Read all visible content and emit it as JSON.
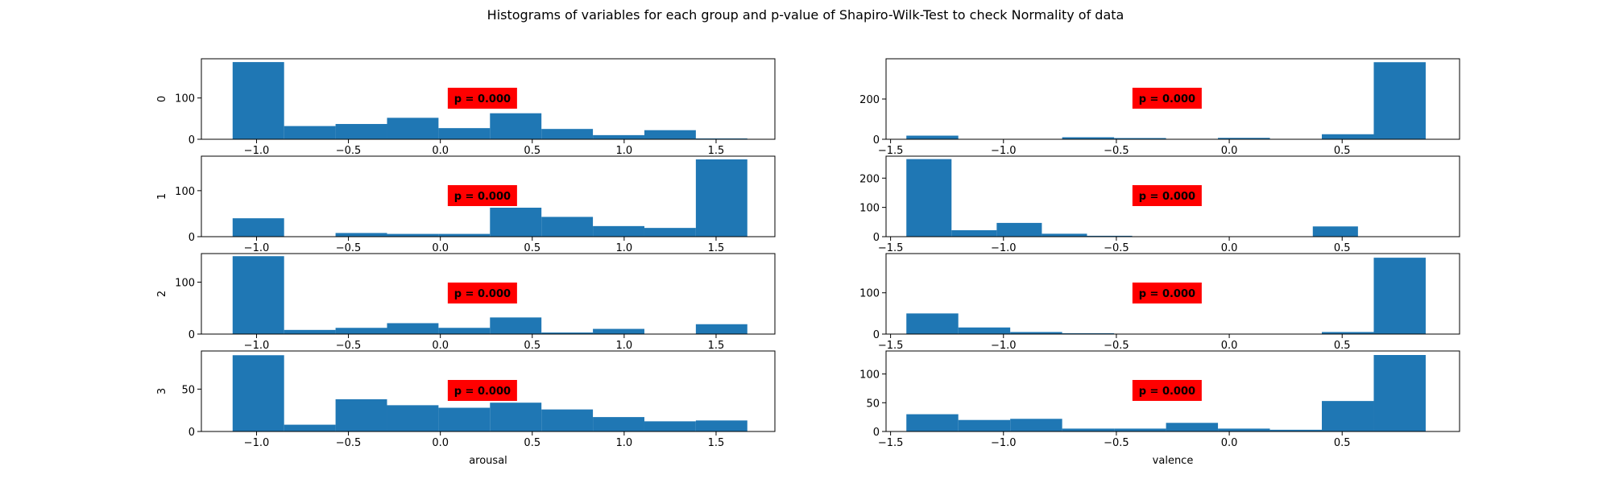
{
  "chart_data": {
    "type": "bar",
    "title": "Histograms of variables for each group and p-value of Shapiro-Wilk-Test to check Normality of data",
    "bar_color": "#1f77b4",
    "annotation_bg": "#ff0000",
    "grid": false,
    "columns": [
      {
        "variable": "arousal",
        "xlabel": "arousal",
        "xlim": [
          -1.3,
          1.82
        ],
        "xticks": [
          -1.0,
          -0.5,
          0.0,
          0.5,
          1.0,
          1.5
        ],
        "xtick_labels": [
          "−1.0",
          "−0.5",
          "0.0",
          "0.5",
          "1.0",
          "1.5"
        ],
        "panels": [
          {
            "group": "0",
            "ylim": [
              0,
              195
            ],
            "yticks": [
              0,
              100
            ],
            "bin_edges": [
              -1.13,
              -0.85,
              -0.57,
              -0.29,
              -0.01,
              0.27,
              0.55,
              0.83,
              1.11,
              1.39,
              1.67
            ],
            "counts": [
              187,
              32,
              37,
              52,
              27,
              63,
              25,
              10,
              22,
              2
            ],
            "p_text": "p = 0.000"
          },
          {
            "group": "1",
            "ylim": [
              0,
              175
            ],
            "yticks": [
              0,
              100
            ],
            "bin_edges": [
              -1.13,
              -0.85,
              -0.57,
              -0.29,
              -0.01,
              0.27,
              0.55,
              0.83,
              1.11,
              1.39,
              1.67
            ],
            "counts": [
              40,
              0,
              8,
              6,
              6,
              63,
              43,
              23,
              19,
              168
            ],
            "p_text": "p = 0.000"
          },
          {
            "group": "2",
            "ylim": [
              0,
              155
            ],
            "yticks": [
              0,
              100
            ],
            "bin_edges": [
              -1.13,
              -0.85,
              -0.57,
              -0.29,
              -0.01,
              0.27,
              0.55,
              0.83,
              1.11,
              1.39,
              1.67
            ],
            "counts": [
              150,
              8,
              12,
              21,
              12,
              32,
              3,
              10,
              0,
              19
            ],
            "p_text": "p = 0.000"
          },
          {
            "group": "3",
            "ylim": [
              0,
              95
            ],
            "yticks": [
              0,
              50
            ],
            "bin_edges": [
              -1.13,
              -0.85,
              -0.57,
              -0.29,
              -0.01,
              0.27,
              0.55,
              0.83,
              1.11,
              1.39,
              1.67
            ],
            "counts": [
              90,
              8,
              38,
              31,
              28,
              34,
              26,
              17,
              12,
              13
            ],
            "p_text": "p = 0.000"
          }
        ]
      },
      {
        "variable": "valence",
        "xlabel": "valence",
        "xlim": [
          -1.52,
          1.02
        ],
        "xticks": [
          -1.5,
          -1.0,
          -0.5,
          0.0,
          0.5
        ],
        "xtick_labels": [
          "−1.5",
          "−1.0",
          "−0.5",
          "0.0",
          "0.5"
        ],
        "panels": [
          {
            "group": "0",
            "ylim": [
              0,
              400
            ],
            "yticks": [
              0,
              200
            ],
            "bin_edges": [
              -1.43,
              -1.2,
              -0.97,
              -0.74,
              -0.51,
              -0.28,
              -0.05,
              0.18,
              0.41,
              0.64,
              0.87
            ],
            "counts": [
              18,
              0,
              0,
              10,
              6,
              0,
              7,
              0,
              25,
              383
            ],
            "p_text": "p = 0.000"
          },
          {
            "group": "1",
            "ylim": [
              0,
              275
            ],
            "yticks": [
              0,
              100,
              200
            ],
            "bin_edges": [
              -1.43,
              -1.23,
              -1.03,
              -0.83,
              -0.63,
              -0.43,
              -0.23,
              -0.03,
              0.17,
              0.37,
              0.57
            ],
            "counts": [
              265,
              22,
              47,
              10,
              3,
              0,
              0,
              0,
              0,
              35
            ],
            "p_text": "p = 0.000"
          },
          {
            "group": "2",
            "ylim": [
              0,
              195
            ],
            "yticks": [
              0,
              100
            ],
            "bin_edges": [
              -1.43,
              -1.2,
              -0.97,
              -0.74,
              -0.51,
              -0.28,
              -0.05,
              0.18,
              0.41,
              0.64,
              0.87
            ],
            "counts": [
              50,
              16,
              5,
              2,
              0,
              0,
              0,
              0,
              5,
              185
            ],
            "p_text": "p = 0.000"
          },
          {
            "group": "3",
            "ylim": [
              0,
              140
            ],
            "yticks": [
              0,
              50,
              100
            ],
            "bin_edges": [
              -1.43,
              -1.2,
              -0.97,
              -0.74,
              -0.51,
              -0.28,
              -0.05,
              0.18,
              0.41,
              0.64,
              0.87
            ],
            "counts": [
              30,
              20,
              22,
              5,
              5,
              15,
              5,
              3,
              53,
              133
            ],
            "p_text": "p = 0.000"
          }
        ]
      }
    ]
  }
}
